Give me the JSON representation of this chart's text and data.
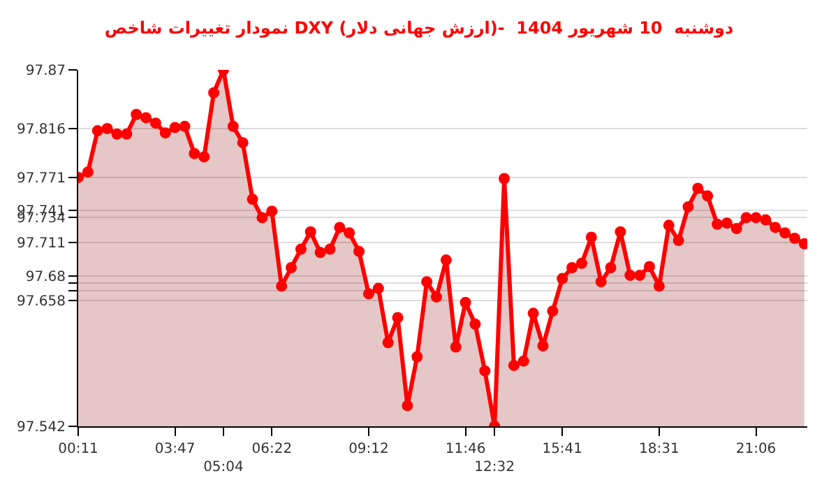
{
  "chart_data": {
    "type": "area",
    "title": "نمودار تغییرات شاخص DXY (ارزش جهانی دلار)-  دوشنبه  10 شهریور 1404",
    "categories": [
      "00:11",
      null,
      null,
      null,
      null,
      null,
      null,
      null,
      null,
      null,
      "03:47",
      null,
      null,
      null,
      null,
      "05:04",
      null,
      null,
      null,
      null,
      "06:22",
      null,
      null,
      null,
      null,
      null,
      null,
      null,
      null,
      null,
      "09:12",
      null,
      null,
      null,
      null,
      null,
      null,
      null,
      null,
      null,
      "11:46",
      null,
      null,
      "12:32",
      null,
      null,
      null,
      null,
      null,
      null,
      "15:41",
      null,
      null,
      null,
      null,
      null,
      null,
      null,
      null,
      null,
      "18:31",
      null,
      null,
      null,
      null,
      null,
      null,
      null,
      null,
      null,
      "21:06",
      null,
      null,
      null,
      null,
      null
    ],
    "series": [
      {
        "color": "#ff0000",
        "values": [
          97.771,
          97.776,
          97.814,
          97.816,
          97.811,
          97.811,
          97.829,
          97.826,
          97.821,
          97.812,
          97.817,
          97.818,
          97.793,
          97.79,
          97.849,
          97.87,
          97.818,
          97.803,
          97.751,
          97.734,
          97.74,
          97.671,
          97.688,
          97.705,
          97.721,
          97.702,
          97.705,
          97.725,
          97.72,
          97.703,
          97.664,
          97.669,
          97.619,
          97.642,
          97.561,
          97.606,
          97.675,
          97.661,
          97.695,
          97.615,
          97.656,
          97.636,
          97.593,
          97.542,
          97.77,
          97.598,
          97.602,
          97.646,
          97.616,
          97.648,
          97.678,
          97.688,
          97.692,
          97.716,
          97.675,
          97.688,
          97.721,
          97.681,
          97.681,
          97.689,
          97.671,
          97.727,
          97.713,
          97.744,
          97.761,
          97.754,
          97.728,
          97.729,
          97.724,
          97.734,
          97.734,
          97.732,
          97.725,
          97.72,
          97.715,
          97.71
        ]
      }
    ],
    "ylim": [
      97.542,
      97.87
    ],
    "yticks": [
      97.87,
      97.816,
      97.771,
      97.741,
      97.734,
      97.711,
      97.68,
      {
        "value": 97.674,
        "label": null
      },
      {
        "value": 97.667,
        "label": null
      },
      97.658,
      97.542
    ],
    "grid": "y",
    "marker": "circle",
    "line_style": "solid",
    "legend": false
  }
}
